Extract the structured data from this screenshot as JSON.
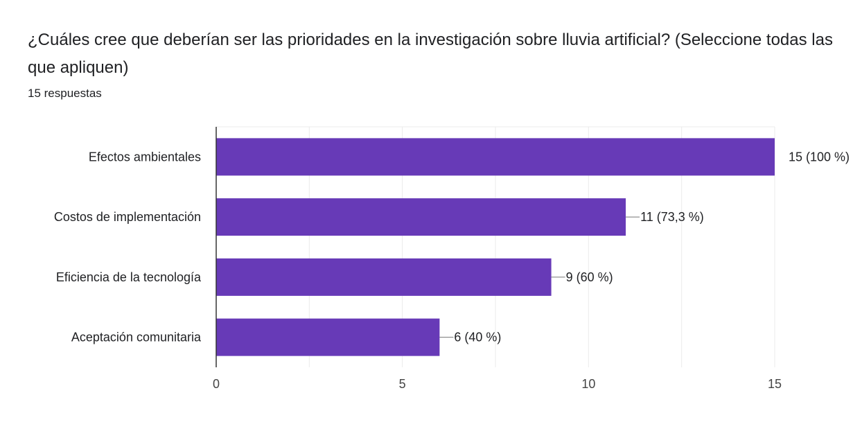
{
  "header": {
    "title": "¿Cuáles cree que deberían ser las prioridades en la investigación sobre lluvia artificial? (Seleccione todas las que apliquen)",
    "responses": "15 respuestas"
  },
  "colors": {
    "bar": "#673ab7",
    "grid": "#ebebeb",
    "axis": "#333333",
    "leader": "#757575"
  },
  "chart_data": {
    "type": "bar",
    "orientation": "horizontal",
    "categories": [
      "Efectos ambientales",
      "Costos de implementación",
      "Eficiencia de la tecnología",
      "Aceptación comunitaria"
    ],
    "values": [
      15,
      11,
      9,
      6
    ],
    "data_labels": [
      "15 (100 %)",
      "11 (73,3 %)",
      "9 (60 %)",
      "6 (40 %)"
    ],
    "x_ticks": [
      0,
      5,
      10,
      15
    ],
    "xlim": [
      0,
      15
    ],
    "grid": true
  }
}
